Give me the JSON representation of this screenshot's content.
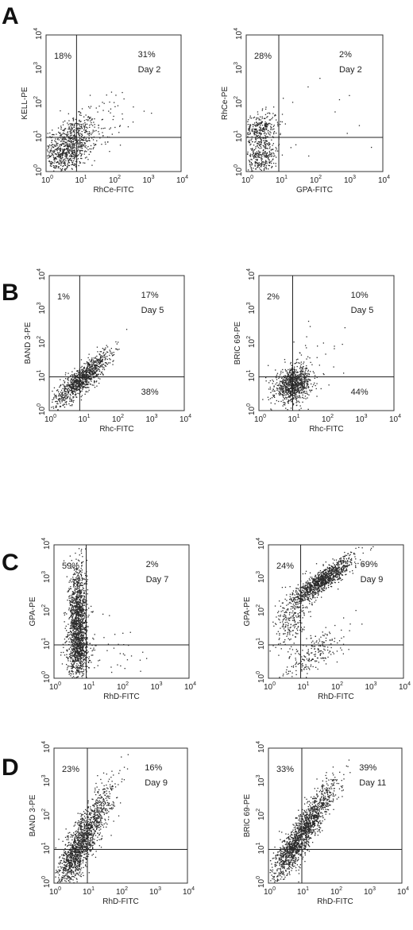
{
  "panel_letters": [
    "A",
    "B",
    "C",
    "D"
  ],
  "chart_data": [
    {
      "type": "scatter",
      "panel": "A",
      "position": "left",
      "xlabel": "RhCe-FITC",
      "ylabel": "KELL-PE",
      "xscale": "log",
      "yscale": "log",
      "xlim": [
        1,
        10000
      ],
      "ylim": [
        1,
        10000
      ],
      "gate": {
        "x": 8,
        "y": 10
      },
      "quadrant_labels": {
        "upper_left": "18%",
        "upper_right": "31%",
        "lower_right": ""
      },
      "day": "Day 2",
      "populations": [
        {
          "n": 750,
          "cx": 5,
          "cy": 6,
          "sx": 0.4,
          "sy": 0.42,
          "r": 0.45
        },
        {
          "n": 150,
          "cx": 3,
          "cy": 3,
          "sx": 0.3,
          "sy": 0.35,
          "r": 0.2
        },
        {
          "n": 60,
          "cx": 60,
          "cy": 30,
          "sx": 0.6,
          "sy": 0.55,
          "r": 0.3
        }
      ]
    },
    {
      "type": "scatter",
      "panel": "A",
      "position": "right",
      "xlabel": "GPA-FITC",
      "ylabel": "RhCe-PE",
      "xscale": "log",
      "yscale": "log",
      "xlim": [
        1,
        10000
      ],
      "ylim": [
        1,
        10000
      ],
      "gate": {
        "x": 9,
        "y": 10
      },
      "quadrant_labels": {
        "upper_left": "28%",
        "upper_right": "2%",
        "lower_right": ""
      },
      "day": "Day 2",
      "populations": [
        {
          "n": 380,
          "cx": 2.5,
          "cy": 3,
          "sx": 0.28,
          "sy": 0.32,
          "r": 0.1
        },
        {
          "n": 260,
          "cx": 2.6,
          "cy": 20,
          "sx": 0.25,
          "sy": 0.22,
          "r": 0.2
        },
        {
          "n": 15,
          "cx": 100,
          "cy": 50,
          "sx": 0.9,
          "sy": 0.8,
          "r": 0
        }
      ]
    },
    {
      "type": "scatter",
      "panel": "B",
      "position": "left",
      "xlabel": "Rhc-FITC",
      "ylabel": "BAND 3-PE",
      "xscale": "log",
      "yscale": "log",
      "xlim": [
        1,
        10000
      ],
      "ylim": [
        1,
        10000
      ],
      "gate": {
        "x": 8,
        "y": 10
      },
      "quadrant_labels": {
        "upper_left": "1%",
        "upper_right": "17%",
        "lower_right": "38%"
      },
      "day": "Day 5",
      "populations": [
        {
          "n": 900,
          "cx": 8,
          "cy": 8,
          "sx": 0.38,
          "sy": 0.36,
          "r": 0.82
        },
        {
          "n": 120,
          "cx": 25,
          "cy": 25,
          "sx": 0.28,
          "sy": 0.28,
          "r": 0.85
        }
      ]
    },
    {
      "type": "scatter",
      "panel": "B",
      "position": "right",
      "xlabel": "Rhc-FITC",
      "ylabel": "BRIC 69-PE",
      "xscale": "log",
      "yscale": "log",
      "xlim": [
        1,
        10000
      ],
      "ylim": [
        1,
        10000
      ],
      "gate": {
        "x": 10,
        "y": 10
      },
      "quadrant_labels": {
        "upper_left": "2%",
        "upper_right": "10%",
        "lower_right": "44%"
      },
      "day": "Day 5",
      "populations": [
        {
          "n": 900,
          "cx": 10,
          "cy": 6,
          "sx": 0.27,
          "sy": 0.25,
          "r": 0.25
        },
        {
          "n": 40,
          "cx": 30,
          "cy": 30,
          "sx": 0.5,
          "sy": 0.5,
          "r": 0.2
        }
      ]
    },
    {
      "type": "scatter",
      "panel": "C",
      "position": "left",
      "xlabel": "RhD-FITC",
      "ylabel": "GPA-PE",
      "xscale": "log",
      "yscale": "log",
      "xlim": [
        1,
        10000
      ],
      "ylim": [
        1,
        10000
      ],
      "gate": {
        "x": 9,
        "y": 10
      },
      "quadrant_labels": {
        "upper_left": "59%",
        "upper_right": "2%",
        "lower_right": ""
      },
      "day": "Day 7",
      "populations": [
        {
          "n": 1400,
          "cx": 5,
          "cy": 50,
          "sx": 0.13,
          "sy": 0.85,
          "r": 0
        },
        {
          "n": 300,
          "cx": 5,
          "cy": 6,
          "sx": 0.18,
          "sy": 0.3,
          "r": 0
        },
        {
          "n": 40,
          "cx": 40,
          "cy": 10,
          "sx": 0.6,
          "sy": 0.5,
          "r": 0
        }
      ]
    },
    {
      "type": "scatter",
      "panel": "C",
      "position": "right",
      "xlabel": "RhD-FITC",
      "ylabel": "GPA-PE",
      "xscale": "log",
      "yscale": "log",
      "xlim": [
        1,
        10000
      ],
      "ylim": [
        1,
        10000
      ],
      "gate": {
        "x": 9,
        "y": 10
      },
      "quadrant_labels": {
        "upper_left": "24%",
        "upper_right": "69%",
        "lower_right": ""
      },
      "day": "Day 9",
      "populations": [
        {
          "n": 1100,
          "cx": 40,
          "cy": 900,
          "sx": 0.45,
          "sy": 0.35,
          "r": 0.88
        },
        {
          "n": 250,
          "cx": 5,
          "cy": 60,
          "sx": 0.25,
          "sy": 0.45,
          "r": 0.5
        },
        {
          "n": 220,
          "cx": 20,
          "cy": 5,
          "sx": 0.45,
          "sy": 0.4,
          "r": 0.7
        }
      ]
    },
    {
      "type": "scatter",
      "panel": "D",
      "position": "left",
      "xlabel": "RhD-FITC",
      "ylabel": "BAND 3-PE",
      "xscale": "log",
      "yscale": "log",
      "xlim": [
        1,
        10000
      ],
      "ylim": [
        1,
        10000
      ],
      "gate": {
        "x": 10,
        "y": 10
      },
      "quadrant_labels": {
        "upper_left": "23%",
        "upper_right": "16%",
        "lower_right": ""
      },
      "day": "Day 9",
      "populations": [
        {
          "n": 1300,
          "cx": 8,
          "cy": 25,
          "sx": 0.42,
          "sy": 0.75,
          "r": 0.86
        },
        {
          "n": 250,
          "cx": 4,
          "cy": 5,
          "sx": 0.22,
          "sy": 0.3,
          "r": 0.4
        }
      ]
    },
    {
      "type": "scatter",
      "panel": "D",
      "position": "right",
      "xlabel": "RhD-FITC",
      "ylabel": "BRIC 69-PE",
      "xscale": "log",
      "yscale": "log",
      "xlim": [
        1,
        10000
      ],
      "ylim": [
        1,
        10000
      ],
      "gate": {
        "x": 10,
        "y": 10
      },
      "quadrant_labels": {
        "upper_left": "33%",
        "upper_right": "39%",
        "lower_right": ""
      },
      "day": "Day 11",
      "populations": [
        {
          "n": 1400,
          "cx": 12,
          "cy": 40,
          "sx": 0.45,
          "sy": 0.7,
          "r": 0.9
        },
        {
          "n": 200,
          "cx": 4,
          "cy": 8,
          "sx": 0.22,
          "sy": 0.3,
          "r": 0.4
        }
      ]
    }
  ]
}
